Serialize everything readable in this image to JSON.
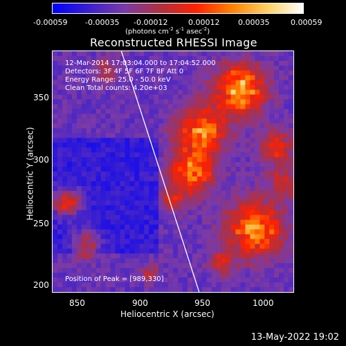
{
  "colorbar": {
    "ticks": [
      "-0.00059",
      "-0.00035",
      "-0.00012",
      "0.00012",
      "0.00035",
      "0.00059"
    ],
    "units_prefix": "(photons cm",
    "units_sup1": "-2",
    "units_mid": " s",
    "units_sup2": "-1",
    "units_mid2": " asec",
    "units_sup3": "-2",
    "units_suffix": ")"
  },
  "title": "Reconstructed RHESSI Image",
  "info": {
    "time_range": "12-Mar-2014 17:03:04.000 to 17:04:52.000",
    "detectors": "Detectors: 3F 4F 5F 6F 7F 8F  Att 0",
    "energy": "Energy Range: 25.0 - 50.0 keV",
    "clean": "Clean    Total counts: 4.20e+03"
  },
  "peak": "Position of Peak = [989,330]",
  "axes": {
    "xlabel": "Heliocentric X (arcsec)",
    "ylabel": "Heliocentric Y (arcsec)",
    "xticks": [
      "850",
      "900",
      "950",
      "1000"
    ],
    "yticks": [
      "350",
      "300",
      "250",
      "200"
    ]
  },
  "datestamp": "13-May-2022 19:02",
  "colors": {
    "cmap": [
      "#0000ff",
      "#3a1fd0",
      "#7a3aa8",
      "#b03040",
      "#ff2000",
      "#ff8000",
      "#ffd060",
      "#ffffff"
    ],
    "limb_line": "#ffffff"
  }
}
